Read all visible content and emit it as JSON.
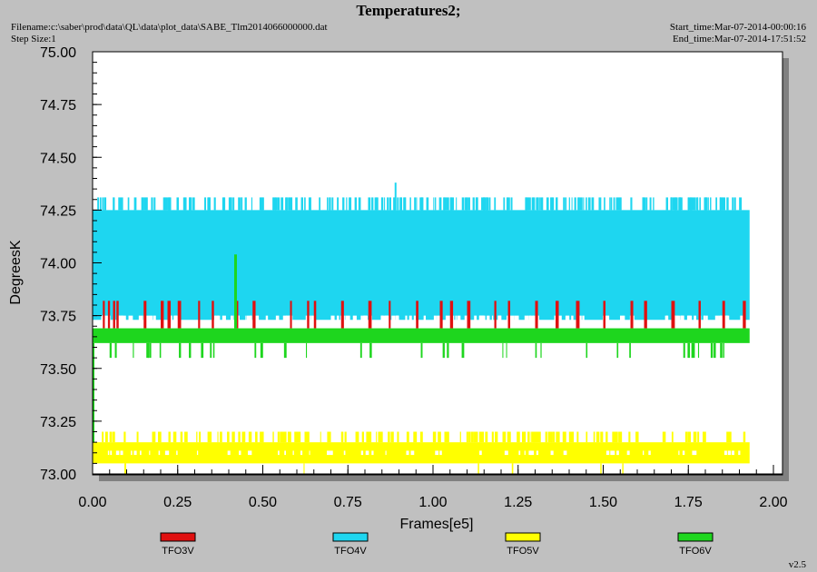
{
  "header": {
    "title": "Temperatures2;",
    "filename": "Filename:c:\\saber\\prod\\data\\QL\\data\\plot_data\\SABE_Tlm2014066000000.dat",
    "step_size": "Step Size:1",
    "start_time": "Start_time:Mar-07-2014-00:00:16",
    "end_time": "End_time:Mar-07-2014-17:51:52",
    "version": "v2.5"
  },
  "chart_data": {
    "type": "line",
    "xlabel": "Frames[e5]",
    "ylabel": "DegreesK",
    "xlim": [
      0.0,
      2.0
    ],
    "ylim": [
      73.0,
      75.0
    ],
    "x_ticks": [
      "0.00",
      "0.25",
      "0.50",
      "0.75",
      "1.00",
      "1.25",
      "1.50",
      "1.75",
      "2.00"
    ],
    "y_ticks": [
      "73.00",
      "73.25",
      "73.50",
      "73.75",
      "74.00",
      "74.25",
      "74.50",
      "74.75",
      "75.00"
    ],
    "x_end": 1.93,
    "grid": false,
    "legend_placement": "bottom",
    "series": [
      {
        "name": "TFO3V",
        "color": "#e01010",
        "base_range": [
          73.69,
          73.75
        ],
        "spike_high": 73.82,
        "spike_x": [
          0.03,
          0.045,
          0.06,
          0.07,
          0.15,
          0.2,
          0.22,
          0.25,
          0.31,
          0.35,
          0.42,
          0.47,
          0.58,
          0.63,
          0.65,
          0.73,
          0.81,
          0.87,
          0.95,
          1.02,
          1.05,
          1.1,
          1.18,
          1.22,
          1.3,
          1.36,
          1.42,
          1.5,
          1.58,
          1.62,
          1.7,
          1.78,
          1.85,
          1.91
        ]
      },
      {
        "name": "TFO4V",
        "color": "#1ed6f0",
        "base_range": [
          73.73,
          74.25
        ],
        "upper_spike": 74.31,
        "max_point": [
          0.89,
          74.38
        ]
      },
      {
        "name": "TFO5V",
        "color": "#ffff00",
        "base_range": [
          73.05,
          73.15
        ],
        "upper_spike": 73.2,
        "lower_spike": 73.0
      },
      {
        "name": "TFO6V",
        "color": "#1ed61e",
        "base_range": [
          73.62,
          73.69
        ],
        "lower_spike": 73.55,
        "max_point": [
          0.42,
          74.04
        ],
        "start_min": 73.15
      }
    ]
  }
}
